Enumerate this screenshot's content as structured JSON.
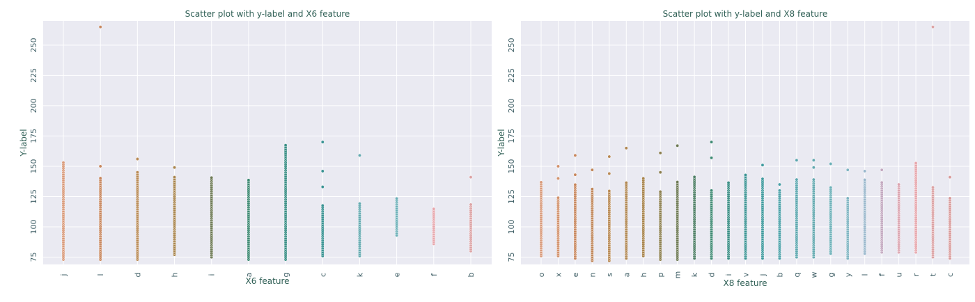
{
  "chart_data": [
    {
      "type": "scatter",
      "title": "Scatter plot with y-label and X6 feature",
      "xlabel": "X6 feature",
      "ylabel": "Y-label",
      "categories": [
        "j",
        "l",
        "d",
        "h",
        "i",
        "a",
        "g",
        "c",
        "k",
        "e",
        "f",
        "b"
      ],
      "category_colors": [
        "#d99a7a",
        "#c8875e",
        "#b98a55",
        "#a8844c",
        "#6e7a55",
        "#3e8a73",
        "#3b8f86",
        "#3a9393",
        "#63a9b0",
        "#6bb0b8",
        "#e7a6ac",
        "#dca2a4"
      ],
      "ylim": [
        69,
        270
      ],
      "yticks": [
        75,
        100,
        125,
        150,
        175,
        200,
        225,
        250
      ],
      "grid": true,
      "series": [
        {
          "x": "j",
          "min": 73,
          "max": 154,
          "outliers": []
        },
        {
          "x": "l",
          "min": 73,
          "max": 141,
          "outliers": [
            150,
            265
          ]
        },
        {
          "x": "d",
          "min": 73,
          "max": 146,
          "outliers": [
            156
          ]
        },
        {
          "x": "h",
          "min": 77,
          "max": 141,
          "outliers": [
            149
          ]
        },
        {
          "x": "i",
          "min": 75,
          "max": 142,
          "outliers": []
        },
        {
          "x": "a",
          "min": 73,
          "max": 140,
          "outliers": []
        },
        {
          "x": "g",
          "min": 73,
          "max": 168,
          "outliers": []
        },
        {
          "x": "c",
          "min": 76,
          "max": 118,
          "outliers": [
            133,
            146,
            170
          ]
        },
        {
          "x": "k",
          "min": 76,
          "max": 120,
          "outliers": [
            159
          ]
        },
        {
          "x": "e",
          "min": 93,
          "max": 124,
          "outliers": []
        },
        {
          "x": "f",
          "min": 86,
          "max": 115,
          "outliers": []
        },
        {
          "x": "b",
          "min": 80,
          "max": 119,
          "outliers": [
            141
          ]
        }
      ]
    },
    {
      "type": "scatter",
      "title": "Scatter plot with y-label and X8 feature",
      "xlabel": "X8 feature",
      "ylabel": "Y-label",
      "categories": [
        "o",
        "x",
        "e",
        "n",
        "s",
        "a",
        "h",
        "p",
        "m",
        "k",
        "d",
        "i",
        "v",
        "j",
        "b",
        "q",
        "w",
        "g",
        "y",
        "l",
        "f",
        "u",
        "r",
        "t",
        "c"
      ],
      "category_colors": [
        "#d99a7a",
        "#d3926c",
        "#c8875e",
        "#c08659",
        "#b98a55",
        "#b08650",
        "#a8844c",
        "#8c7f4f",
        "#6e7a55",
        "#4e7f66",
        "#3e8a73",
        "#3b8f86",
        "#3a9393",
        "#3f9a9e",
        "#4aa0a8",
        "#5aa6ae",
        "#63a9b0",
        "#6bb0b8",
        "#7fb5c2",
        "#99b7cc",
        "#c3a9c0",
        "#dba4b0",
        "#e7a6ac",
        "#dca2a4",
        "#d99a9a"
      ],
      "ylim": [
        69,
        270
      ],
      "yticks": [
        75,
        100,
        125,
        150,
        175,
        200,
        225,
        250
      ],
      "grid": true,
      "series": [
        {
          "x": "o",
          "min": 76,
          "max": 137,
          "outliers": []
        },
        {
          "x": "x",
          "min": 76,
          "max": 125,
          "outliers": [
            140,
            150
          ]
        },
        {
          "x": "e",
          "min": 74,
          "max": 135,
          "outliers": [
            143,
            159
          ]
        },
        {
          "x": "n",
          "min": 72,
          "max": 132,
          "outliers": [
            147
          ]
        },
        {
          "x": "s",
          "min": 72,
          "max": 130,
          "outliers": [
            144,
            158
          ]
        },
        {
          "x": "a",
          "min": 74,
          "max": 137,
          "outliers": [
            165
          ]
        },
        {
          "x": "h",
          "min": 76,
          "max": 140,
          "outliers": []
        },
        {
          "x": "p",
          "min": 73,
          "max": 130,
          "outliers": [
            145,
            161
          ]
        },
        {
          "x": "m",
          "min": 73,
          "max": 138,
          "outliers": [
            167
          ]
        },
        {
          "x": "k",
          "min": 74,
          "max": 142,
          "outliers": []
        },
        {
          "x": "d",
          "min": 74,
          "max": 130,
          "outliers": [
            157,
            170
          ]
        },
        {
          "x": "i",
          "min": 74,
          "max": 137,
          "outliers": []
        },
        {
          "x": "v",
          "min": 74,
          "max": 143,
          "outliers": []
        },
        {
          "x": "j",
          "min": 74,
          "max": 140,
          "outliers": [
            151
          ]
        },
        {
          "x": "b",
          "min": 74,
          "max": 130,
          "outliers": [
            135
          ]
        },
        {
          "x": "q",
          "min": 75,
          "max": 140,
          "outliers": [
            155
          ]
        },
        {
          "x": "w",
          "min": 75,
          "max": 140,
          "outliers": [
            149,
            155
          ]
        },
        {
          "x": "g",
          "min": 78,
          "max": 133,
          "outliers": [
            152
          ]
        },
        {
          "x": "y",
          "min": 74,
          "max": 125,
          "outliers": [
            147
          ]
        },
        {
          "x": "l",
          "min": 78,
          "max": 140,
          "outliers": [
            146
          ]
        },
        {
          "x": "f",
          "min": 79,
          "max": 138,
          "outliers": [
            147
          ]
        },
        {
          "x": "u",
          "min": 79,
          "max": 135,
          "outliers": []
        },
        {
          "x": "r",
          "min": 79,
          "max": 153,
          "outliers": []
        },
        {
          "x": "t",
          "min": 75,
          "max": 133,
          "outliers": [
            265
          ]
        },
        {
          "x": "c",
          "min": 74,
          "max": 125,
          "outliers": [
            141
          ]
        }
      ]
    }
  ]
}
